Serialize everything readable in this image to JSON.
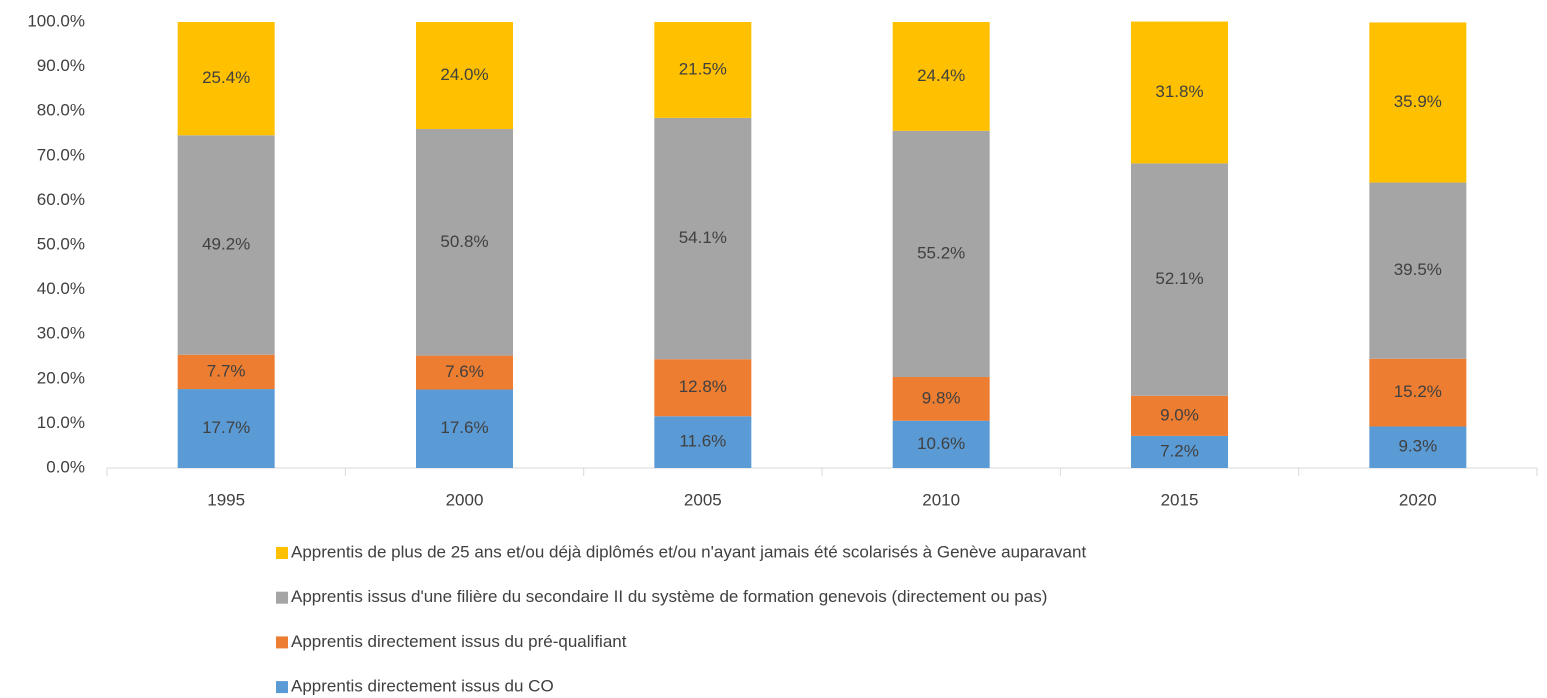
{
  "chart_data": {
    "type": "stacked_bar",
    "categories": [
      "1995",
      "2000",
      "2005",
      "2010",
      "2015",
      "2020"
    ],
    "series": [
      {
        "name": "Apprentis directement issus du CO",
        "color": "#5b9bd5",
        "values": [
          17.7,
          17.6,
          11.6,
          10.6,
          7.2,
          9.3
        ],
        "value_labels": [
          "17.7%",
          "17.6%",
          "11.6%",
          "10.6%",
          "7.2%",
          "9.3%"
        ]
      },
      {
        "name": "Apprentis directement issus du pré-qualifiant",
        "color": "#ed7d31",
        "values": [
          7.7,
          7.6,
          12.8,
          9.8,
          9.0,
          15.2
        ],
        "value_labels": [
          "7.7%",
          "7.6%",
          "12.8%",
          "9.8%",
          "9.0%",
          "15.2%"
        ]
      },
      {
        "name": "Apprentis issus d'une filière du secondaire II du système de formation genevois (directement ou pas)",
        "color": "#a5a5a5",
        "values": [
          49.2,
          50.8,
          54.1,
          55.2,
          52.1,
          39.5
        ],
        "value_labels": [
          "49.2%",
          "50.8%",
          "54.1%",
          "55.2%",
          "52.1%",
          "39.5%"
        ]
      },
      {
        "name": "Apprentis de plus de 25 ans et/ou déjà diplômés et/ou n'ayant jamais été scolarisés à Genève auparavant",
        "color": "#ffc000",
        "values": [
          25.4,
          24.0,
          21.5,
          24.4,
          31.8,
          35.9
        ],
        "value_labels": [
          "25.4%",
          "24.0%",
          "21.5%",
          "24.4%",
          "31.8%",
          "35.9%"
        ]
      }
    ],
    "ylim": [
      0,
      100
    ],
    "yticks": [
      {
        "value": 0,
        "label": "0.0%"
      },
      {
        "value": 10,
        "label": "10.0%"
      },
      {
        "value": 20,
        "label": "20.0%"
      },
      {
        "value": 30,
        "label": "30.0%"
      },
      {
        "value": 40,
        "label": "40.0%"
      },
      {
        "value": 50,
        "label": "50.0%"
      },
      {
        "value": 60,
        "label": "60.0%"
      },
      {
        "value": 70,
        "label": "70.0%"
      },
      {
        "value": 80,
        "label": "80.0%"
      },
      {
        "value": 90,
        "label": "90.0%"
      },
      {
        "value": 100,
        "label": "100.0%"
      }
    ],
    "grid": false,
    "legend": "bottom"
  }
}
